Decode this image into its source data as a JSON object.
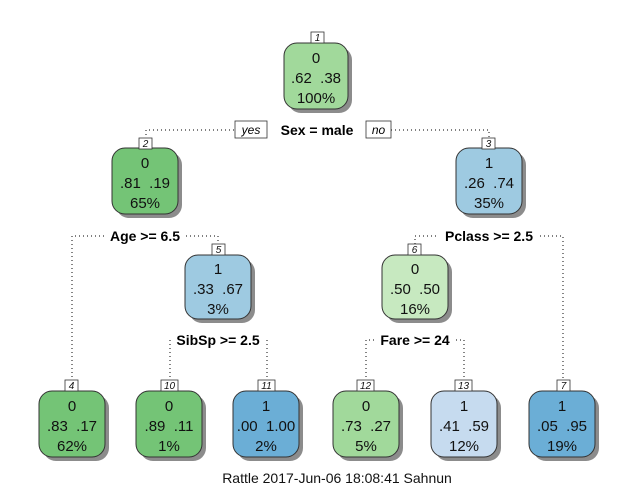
{
  "nodes": [
    {
      "id": "1",
      "index_label": "1",
      "class_label": "0",
      "probs": ".62  .38",
      "pct": "100%",
      "fill": "#a1d99b"
    },
    {
      "id": "2",
      "index_label": "2",
      "class_label": "0",
      "probs": ".81  .19",
      "pct": "65%",
      "fill": "#74c476"
    },
    {
      "id": "3",
      "index_label": "3",
      "class_label": "1",
      "probs": ".26  .74",
      "pct": "35%",
      "fill": "#9ecae1"
    },
    {
      "id": "4",
      "index_label": "4",
      "class_label": "0",
      "probs": ".83  .17",
      "pct": "62%",
      "fill": "#74c476"
    },
    {
      "id": "5",
      "index_label": "5",
      "class_label": "1",
      "probs": ".33  .67",
      "pct": "3%",
      "fill": "#9ecae1"
    },
    {
      "id": "6",
      "index_label": "6",
      "class_label": "0",
      "probs": ".50  .50",
      "pct": "16%",
      "fill": "#c7e9c0"
    },
    {
      "id": "7",
      "index_label": "7",
      "class_label": "1",
      "probs": ".05  .95",
      "pct": "19%",
      "fill": "#6baed6"
    },
    {
      "id": "10",
      "index_label": "10",
      "class_label": "0",
      "probs": ".89  .11",
      "pct": "1%",
      "fill": "#74c476"
    },
    {
      "id": "11",
      "index_label": "11",
      "class_label": "1",
      "probs": ".00  1.00",
      "pct": "2%",
      "fill": "#6baed6"
    },
    {
      "id": "12",
      "index_label": "12",
      "class_label": "0",
      "probs": ".73  .27",
      "pct": "5%",
      "fill": "#a1d99b"
    },
    {
      "id": "13",
      "index_label": "13",
      "class_label": "1",
      "probs": ".41  .59",
      "pct": "12%",
      "fill": "#c6dbef"
    }
  ],
  "splits": [
    {
      "id": "root",
      "label": "Sex = male"
    },
    {
      "id": "node2",
      "label": "Age >= 6.5"
    },
    {
      "id": "node3",
      "label": "Pclass >= 2.5"
    },
    {
      "id": "node5",
      "label": "SibSp >= 2.5"
    },
    {
      "id": "node6",
      "label": "Fare >= 24"
    }
  ],
  "branch_labels": {
    "yes": "yes",
    "no": "no"
  },
  "footer": "Rattle 2017-Jun-06 18:08:41 Sahnun"
}
